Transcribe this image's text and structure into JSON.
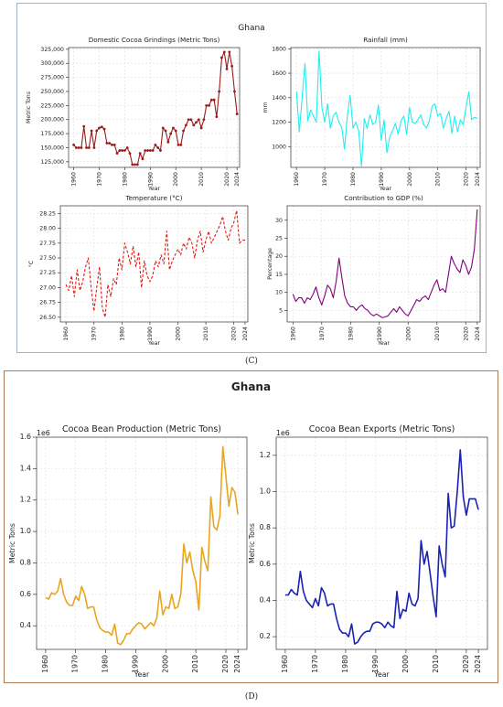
{
  "panel_c": {
    "title": "Ghana",
    "caption": "(C)"
  },
  "panel_d": {
    "title": "Ghana",
    "caption": "(D)"
  },
  "chart_data": [
    {
      "type": "line",
      "title": "Domestic Cocoa Grindings (Metric Tons)",
      "xlabel": "Year",
      "ylabel": "Metric Tons",
      "xlim": [
        1958,
        2025
      ],
      "ylim": [
        115000,
        328000
      ],
      "xticks": [
        1960,
        1970,
        1980,
        1990,
        2000,
        2010,
        2020,
        2024
      ],
      "yticks": [
        125000,
        150000,
        175000,
        200000,
        225000,
        250000,
        275000,
        300000,
        325000
      ],
      "ytick_labels": [
        "125,000",
        "150,000",
        "175,000",
        "200,000",
        "225,000",
        "250,000",
        "275,000",
        "300,000",
        "325,000"
      ],
      "line_color": "#9b1c1c",
      "style": "solid-markers",
      "grid": true,
      "x": [
        1960,
        1961,
        1962,
        1963,
        1964,
        1965,
        1966,
        1967,
        1968,
        1969,
        1970,
        1971,
        1972,
        1973,
        1974,
        1975,
        1976,
        1977,
        1978,
        1979,
        1980,
        1981,
        1982,
        1983,
        1984,
        1985,
        1986,
        1987,
        1988,
        1989,
        1990,
        1991,
        1992,
        1993,
        1994,
        1995,
        1996,
        1997,
        1998,
        1999,
        2000,
        2001,
        2002,
        2003,
        2004,
        2005,
        2006,
        2007,
        2008,
        2009,
        2010,
        2011,
        2012,
        2013,
        2014,
        2015,
        2016,
        2017,
        2018,
        2019,
        2020,
        2021,
        2022,
        2023,
        2024
      ],
      "y": [
        155000,
        150000,
        150000,
        150000,
        188000,
        150000,
        150000,
        180000,
        150000,
        180000,
        185000,
        187000,
        183000,
        158000,
        158000,
        155000,
        155000,
        140000,
        145000,
        145000,
        145000,
        150000,
        140000,
        120000,
        120000,
        120000,
        140000,
        130000,
        145000,
        145000,
        145000,
        145000,
        155000,
        150000,
        145000,
        185000,
        180000,
        160000,
        175000,
        185000,
        180000,
        155000,
        155000,
        180000,
        190000,
        200000,
        200000,
        190000,
        195000,
        200000,
        185000,
        200000,
        225000,
        225000,
        235000,
        235000,
        205000,
        250000,
        310000,
        320000,
        290000,
        320000,
        295000,
        250000,
        210000
      ]
    },
    {
      "type": "line",
      "title": "Rainfall (mm)",
      "xlabel": "Year",
      "ylabel": "mm",
      "xlim": [
        1958,
        2025
      ],
      "ylim": [
        830,
        1810
      ],
      "xticks": [
        1960,
        1970,
        1980,
        1990,
        2000,
        2010,
        2020,
        2024
      ],
      "yticks": [
        1000,
        1200,
        1400,
        1600,
        1800
      ],
      "ytick_labels": [
        "1000",
        "1200",
        "1400",
        "1600",
        "1800"
      ],
      "line_color": "#22eef0",
      "style": "solid",
      "grid": true,
      "x": [
        1960,
        1961,
        1962,
        1963,
        1964,
        1965,
        1966,
        1967,
        1968,
        1969,
        1970,
        1971,
        1972,
        1973,
        1974,
        1975,
        1976,
        1977,
        1978,
        1979,
        1980,
        1981,
        1982,
        1983,
        1984,
        1985,
        1986,
        1987,
        1988,
        1989,
        1990,
        1991,
        1992,
        1993,
        1994,
        1995,
        1996,
        1997,
        1998,
        1999,
        2000,
        2001,
        2002,
        2003,
        2004,
        2005,
        2006,
        2007,
        2008,
        2009,
        2010,
        2011,
        2012,
        2013,
        2014,
        2015,
        2016,
        2017,
        2018,
        2019,
        2020,
        2021,
        2022,
        2023,
        2024
      ],
      "y": [
        1450,
        1120,
        1400,
        1680,
        1210,
        1300,
        1250,
        1200,
        1780,
        1320,
        1200,
        1350,
        1150,
        1250,
        1280,
        1200,
        1160,
        980,
        1250,
        1420,
        1150,
        1200,
        1130,
        840,
        1230,
        1150,
        1260,
        1180,
        1200,
        1340,
        1050,
        1220,
        950,
        1080,
        1130,
        1190,
        1100,
        1210,
        1250,
        1100,
        1320,
        1200,
        1190,
        1220,
        1260,
        1180,
        1150,
        1210,
        1330,
        1350,
        1250,
        1270,
        1150,
        1230,
        1290,
        1110,
        1250,
        1120,
        1220,
        1180,
        1320,
        1450,
        1220,
        1240,
        1230
      ]
    },
    {
      "type": "line",
      "title": "Temperature (°C)",
      "xlabel": "Year",
      "ylabel": "°C",
      "xlim": [
        1958,
        2025
      ],
      "ylim": [
        26.42,
        28.38
      ],
      "xticks": [
        1960,
        1970,
        1980,
        1990,
        2000,
        2010,
        2020,
        2024
      ],
      "yticks": [
        26.5,
        26.75,
        27.0,
        27.25,
        27.5,
        27.75,
        28.0,
        28.25
      ],
      "ytick_labels": [
        "26.50",
        "26.75",
        "27.00",
        "27.25",
        "27.50",
        "27.75",
        "28.00",
        "28.25"
      ],
      "line_color": "#e8190f",
      "style": "dashed",
      "grid": true,
      "x": [
        1960,
        1961,
        1962,
        1963,
        1964,
        1965,
        1966,
        1967,
        1968,
        1969,
        1970,
        1971,
        1972,
        1973,
        1974,
        1975,
        1976,
        1977,
        1978,
        1979,
        1980,
        1981,
        1982,
        1983,
        1984,
        1985,
        1986,
        1987,
        1988,
        1989,
        1990,
        1991,
        1992,
        1993,
        1994,
        1995,
        1996,
        1997,
        1998,
        1999,
        2000,
        2001,
        2002,
        2003,
        2004,
        2005,
        2006,
        2007,
        2008,
        2009,
        2010,
        2011,
        2012,
        2013,
        2014,
        2015,
        2016,
        2017,
        2018,
        2019,
        2020,
        2021,
        2022,
        2023,
        2024
      ],
      "y": [
        27.05,
        26.95,
        27.2,
        26.85,
        27.3,
        26.95,
        27.1,
        27.35,
        27.5,
        27.0,
        26.6,
        27.0,
        27.35,
        26.65,
        26.5,
        27.05,
        26.85,
        27.15,
        27.05,
        27.5,
        27.3,
        27.75,
        27.6,
        27.4,
        27.7,
        27.35,
        27.6,
        27.0,
        27.45,
        27.2,
        27.1,
        27.2,
        27.45,
        27.35,
        27.55,
        27.4,
        27.95,
        27.3,
        27.45,
        27.55,
        27.65,
        27.55,
        27.75,
        27.65,
        27.85,
        27.75,
        27.5,
        27.8,
        27.95,
        27.6,
        27.8,
        27.95,
        27.75,
        27.85,
        27.95,
        28.05,
        28.2,
        27.95,
        27.8,
        28.0,
        28.1,
        28.3,
        27.75,
        27.8,
        27.8
      ]
    },
    {
      "type": "line",
      "title": "Contribution to GDP (%)",
      "xlabel": "Year",
      "ylabel": "Percentage",
      "xlim": [
        1958,
        2025
      ],
      "ylim": [
        1.8,
        34
      ],
      "xticks": [
        1960,
        1970,
        1980,
        1990,
        2000,
        2010,
        2020,
        2024
      ],
      "yticks": [
        5,
        10,
        15,
        20,
        25,
        30
      ],
      "ytick_labels": [
        "5",
        "10",
        "15",
        "20",
        "25",
        "30"
      ],
      "line_color": "#800080",
      "style": "solid",
      "grid": true,
      "x": [
        1960,
        1961,
        1962,
        1963,
        1964,
        1965,
        1966,
        1967,
        1968,
        1969,
        1970,
        1971,
        1972,
        1973,
        1974,
        1975,
        1976,
        1977,
        1978,
        1979,
        1980,
        1981,
        1982,
        1983,
        1984,
        1985,
        1986,
        1987,
        1988,
        1989,
        1990,
        1991,
        1992,
        1993,
        1994,
        1995,
        1996,
        1997,
        1998,
        1999,
        2000,
        2001,
        2002,
        2003,
        2004,
        2005,
        2006,
        2007,
        2008,
        2009,
        2010,
        2011,
        2012,
        2013,
        2014,
        2015,
        2016,
        2017,
        2018,
        2019,
        2020,
        2021,
        2022,
        2023,
        2024
      ],
      "y": [
        9.5,
        7.5,
        8.5,
        8.5,
        7.0,
        8.5,
        8.0,
        9.5,
        11.5,
        8.5,
        6.5,
        9.0,
        12.0,
        11.0,
        8.5,
        13.0,
        19.5,
        14.0,
        9.0,
        7.0,
        6.0,
        6.0,
        5.0,
        6.0,
        6.5,
        5.5,
        5.0,
        4.0,
        3.5,
        4.0,
        3.5,
        3.0,
        3.2,
        3.5,
        4.5,
        5.5,
        4.5,
        6.0,
        5.0,
        4.0,
        3.5,
        5.0,
        6.5,
        8.0,
        7.5,
        8.5,
        9.0,
        8.0,
        10.0,
        12.0,
        13.5,
        10.5,
        11.0,
        10.0,
        15.0,
        20.0,
        18.0,
        16.5,
        15.5,
        19.0,
        17.5,
        15.0,
        17.0,
        22.0,
        33.0
      ]
    },
    {
      "type": "line",
      "title": "Cocoa Bean Production (Metric Tons)",
      "xlabel": "Year",
      "ylabel": "Metric Tons",
      "offset_label": "1e6",
      "xlim": [
        1957,
        2027
      ],
      "ylim": [
        0.25,
        1.6
      ],
      "xticks": [
        1960,
        1970,
        1980,
        1990,
        2000,
        2010,
        2020,
        2024
      ],
      "yticks": [
        0.4,
        0.6,
        0.8,
        1.0,
        1.2,
        1.4,
        1.6
      ],
      "ytick_labels": [
        "0.4",
        "0.6",
        "0.8",
        "1.0",
        "1.2",
        "1.4",
        "1.6"
      ],
      "line_color": "#e9a520",
      "style": "solid",
      "grid": true,
      "x": [
        1960,
        1961,
        1962,
        1963,
        1964,
        1965,
        1966,
        1967,
        1968,
        1969,
        1970,
        1971,
        1972,
        1973,
        1974,
        1975,
        1976,
        1977,
        1978,
        1979,
        1980,
        1981,
        1982,
        1983,
        1984,
        1985,
        1986,
        1987,
        1988,
        1989,
        1990,
        1991,
        1992,
        1993,
        1994,
        1995,
        1996,
        1997,
        1998,
        1999,
        2000,
        2001,
        2002,
        2003,
        2004,
        2005,
        2006,
        2007,
        2008,
        2009,
        2010,
        2011,
        2012,
        2013,
        2014,
        2015,
        2016,
        2017,
        2018,
        2019,
        2020,
        2021,
        2022,
        2023,
        2024
      ],
      "y": [
        0.58,
        0.57,
        0.61,
        0.6,
        0.62,
        0.7,
        0.6,
        0.55,
        0.53,
        0.53,
        0.59,
        0.56,
        0.65,
        0.6,
        0.51,
        0.52,
        0.52,
        0.44,
        0.39,
        0.37,
        0.36,
        0.36,
        0.34,
        0.41,
        0.29,
        0.28,
        0.31,
        0.35,
        0.35,
        0.38,
        0.4,
        0.42,
        0.41,
        0.38,
        0.4,
        0.42,
        0.4,
        0.45,
        0.62,
        0.47,
        0.52,
        0.51,
        0.6,
        0.51,
        0.52,
        0.6,
        0.92,
        0.8,
        0.87,
        0.75,
        0.68,
        0.5,
        0.9,
        0.81,
        0.75,
        1.22,
        1.03,
        1.01,
        1.1,
        1.54,
        1.35,
        1.16,
        1.28,
        1.25,
        1.11
      ]
    },
    {
      "type": "line",
      "title": "Cocoa Bean Exports (Metric Tons)",
      "xlabel": "Year",
      "ylabel": "Metric Tons",
      "offset_label": "1e6",
      "xlim": [
        1957,
        2027
      ],
      "ylim": [
        0.13,
        1.3
      ],
      "xticks": [
        1960,
        1970,
        1980,
        1990,
        2000,
        2010,
        2020,
        2024
      ],
      "yticks": [
        0.2,
        0.4,
        0.6,
        0.8,
        1.0,
        1.2
      ],
      "ytick_labels": [
        "0.2",
        "0.4",
        "0.6",
        "0.8",
        "1.0",
        "1.2"
      ],
      "line_color": "#1a22b4",
      "style": "solid",
      "grid": true,
      "x": [
        1960,
        1961,
        1962,
        1963,
        1964,
        1965,
        1966,
        1967,
        1968,
        1969,
        1970,
        1971,
        1972,
        1973,
        1974,
        1975,
        1976,
        1977,
        1978,
        1979,
        1980,
        1981,
        1982,
        1983,
        1984,
        1985,
        1986,
        1987,
        1988,
        1989,
        1990,
        1991,
        1992,
        1993,
        1994,
        1995,
        1996,
        1997,
        1998,
        1999,
        2000,
        2001,
        2002,
        2003,
        2004,
        2005,
        2006,
        2007,
        2008,
        2009,
        2010,
        2011,
        2012,
        2013,
        2014,
        2015,
        2016,
        2017,
        2018,
        2019,
        2020,
        2021,
        2022,
        2023,
        2024
      ],
      "y": [
        0.43,
        0.43,
        0.46,
        0.44,
        0.43,
        0.56,
        0.45,
        0.4,
        0.38,
        0.36,
        0.41,
        0.37,
        0.47,
        0.44,
        0.37,
        0.38,
        0.38,
        0.3,
        0.24,
        0.22,
        0.22,
        0.2,
        0.27,
        0.16,
        0.17,
        0.2,
        0.22,
        0.23,
        0.23,
        0.27,
        0.28,
        0.28,
        0.27,
        0.25,
        0.28,
        0.26,
        0.25,
        0.45,
        0.3,
        0.35,
        0.34,
        0.44,
        0.38,
        0.37,
        0.41,
        0.73,
        0.6,
        0.67,
        0.55,
        0.42,
        0.31,
        0.7,
        0.6,
        0.53,
        0.99,
        0.8,
        0.81,
        1.0,
        1.23,
        0.97,
        0.87,
        0.96,
        0.96,
        0.96,
        0.9
      ]
    }
  ]
}
